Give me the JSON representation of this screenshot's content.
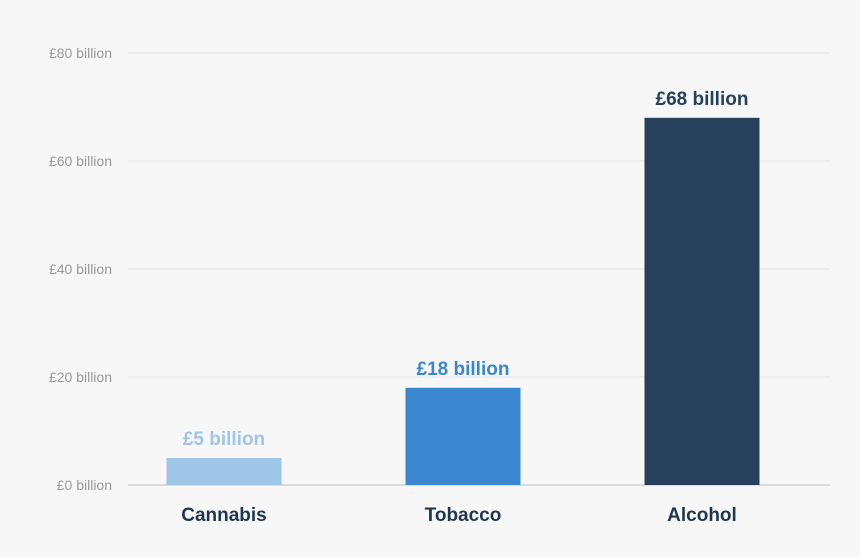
{
  "chart_data": {
    "type": "bar",
    "categories": [
      "Cannabis",
      "Tobacco",
      "Alcohol"
    ],
    "values": [
      5,
      18,
      68
    ],
    "value_labels": [
      "£5 billion",
      "£18 billion",
      "£68 billion"
    ],
    "bar_colors": [
      "#9fc5e8",
      "#3a87d0",
      "#27415c"
    ],
    "ylim": [
      0,
      80
    ],
    "yticks": [
      0,
      20,
      40,
      60,
      80
    ],
    "ytick_labels": [
      "£0 billion",
      "£20 billion",
      "£40 billion",
      "£60 billion",
      "£80 billion"
    ],
    "title": "",
    "xlabel": "",
    "ylabel": "",
    "grid": true,
    "legend": "none"
  }
}
